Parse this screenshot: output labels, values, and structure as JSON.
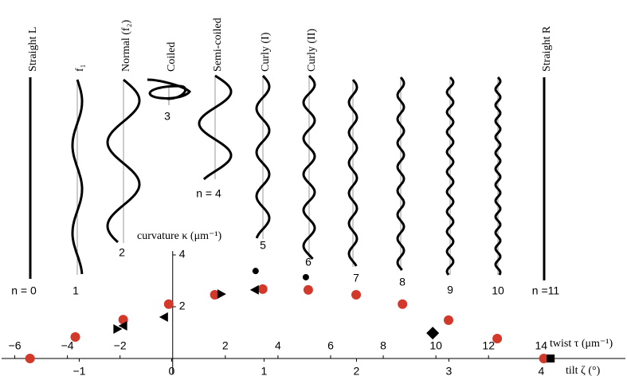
{
  "chart_data": {
    "type": "scatter",
    "x_label": "twist τ (μm⁻¹)",
    "x2_label": "tilt ζ (°)",
    "y_label": "curvature κ (μm⁻¹)",
    "xlim": [
      -6.5,
      17.2
    ],
    "xticks": [
      {
        "value": -6,
        "label": "−6"
      },
      {
        "value": -4,
        "label": "−4"
      },
      {
        "value": -2,
        "label": "−2"
      },
      2,
      4,
      6,
      8,
      10,
      12,
      14
    ],
    "x2lim": [
      -1.84,
      4.91
    ],
    "x2ticks": [
      {
        "value": -1,
        "label": "−1"
      },
      0,
      1,
      2,
      3,
      4
    ],
    "ylim": [
      0,
      4.15
    ],
    "yticks": [
      2,
      4
    ],
    "series": [
      {
        "color": "#d2392b",
        "marker": "circle-large",
        "x": [
          -5.42,
          -3.7,
          -1.88,
          -0.15,
          1.6,
          3.42,
          5.15,
          6.97,
          8.73,
          10.48,
          12.33,
          14.1
        ],
        "values": [
          0,
          0.83,
          1.5,
          2.1,
          2.46,
          2.68,
          2.65,
          2.46,
          2.1,
          1.48,
          0.77,
          0
        ]
      },
      {
        "color": "#000000",
        "marker": "circle",
        "x": [
          3.15,
          5.06
        ],
        "values": [
          3.38,
          3.14
        ]
      },
      {
        "color": "#000000",
        "marker": "triangle-left",
        "x": [
          3.12,
          -0.33,
          -1.88
        ],
        "values": [
          2.65,
          1.6,
          1.26
        ]
      },
      {
        "color": "#000000",
        "marker": "triangle-right",
        "x": [
          1.85,
          -2.1
        ],
        "values": [
          2.49,
          1.14
        ]
      },
      {
        "color": "#000000",
        "marker": "diamond",
        "x": [
          9.88
        ],
        "values": [
          0.98
        ]
      },
      {
        "color": "#000000",
        "marker": "square",
        "x": [
          14.36
        ],
        "values": [
          0
        ]
      }
    ]
  },
  "polymorphs": [
    {
      "name": "Straight L",
      "n_label": "n = 0"
    },
    {
      "name": "f₁",
      "n_label": "1"
    },
    {
      "name": "Normal (f₂)",
      "n_label": "2"
    },
    {
      "name": "Coiled",
      "n_label": "3"
    },
    {
      "name": "Semi-coiled",
      "n_label": "n = 4"
    },
    {
      "name": "Curly (I)",
      "n_label": "5"
    },
    {
      "name": "Curly (II)",
      "n_label": "6"
    },
    {
      "n_label": "7"
    },
    {
      "n_label": "8"
    },
    {
      "n_label": "9"
    },
    {
      "n_label": "10"
    },
    {
      "name": "Straight R",
      "n_label": "n =11"
    }
  ]
}
